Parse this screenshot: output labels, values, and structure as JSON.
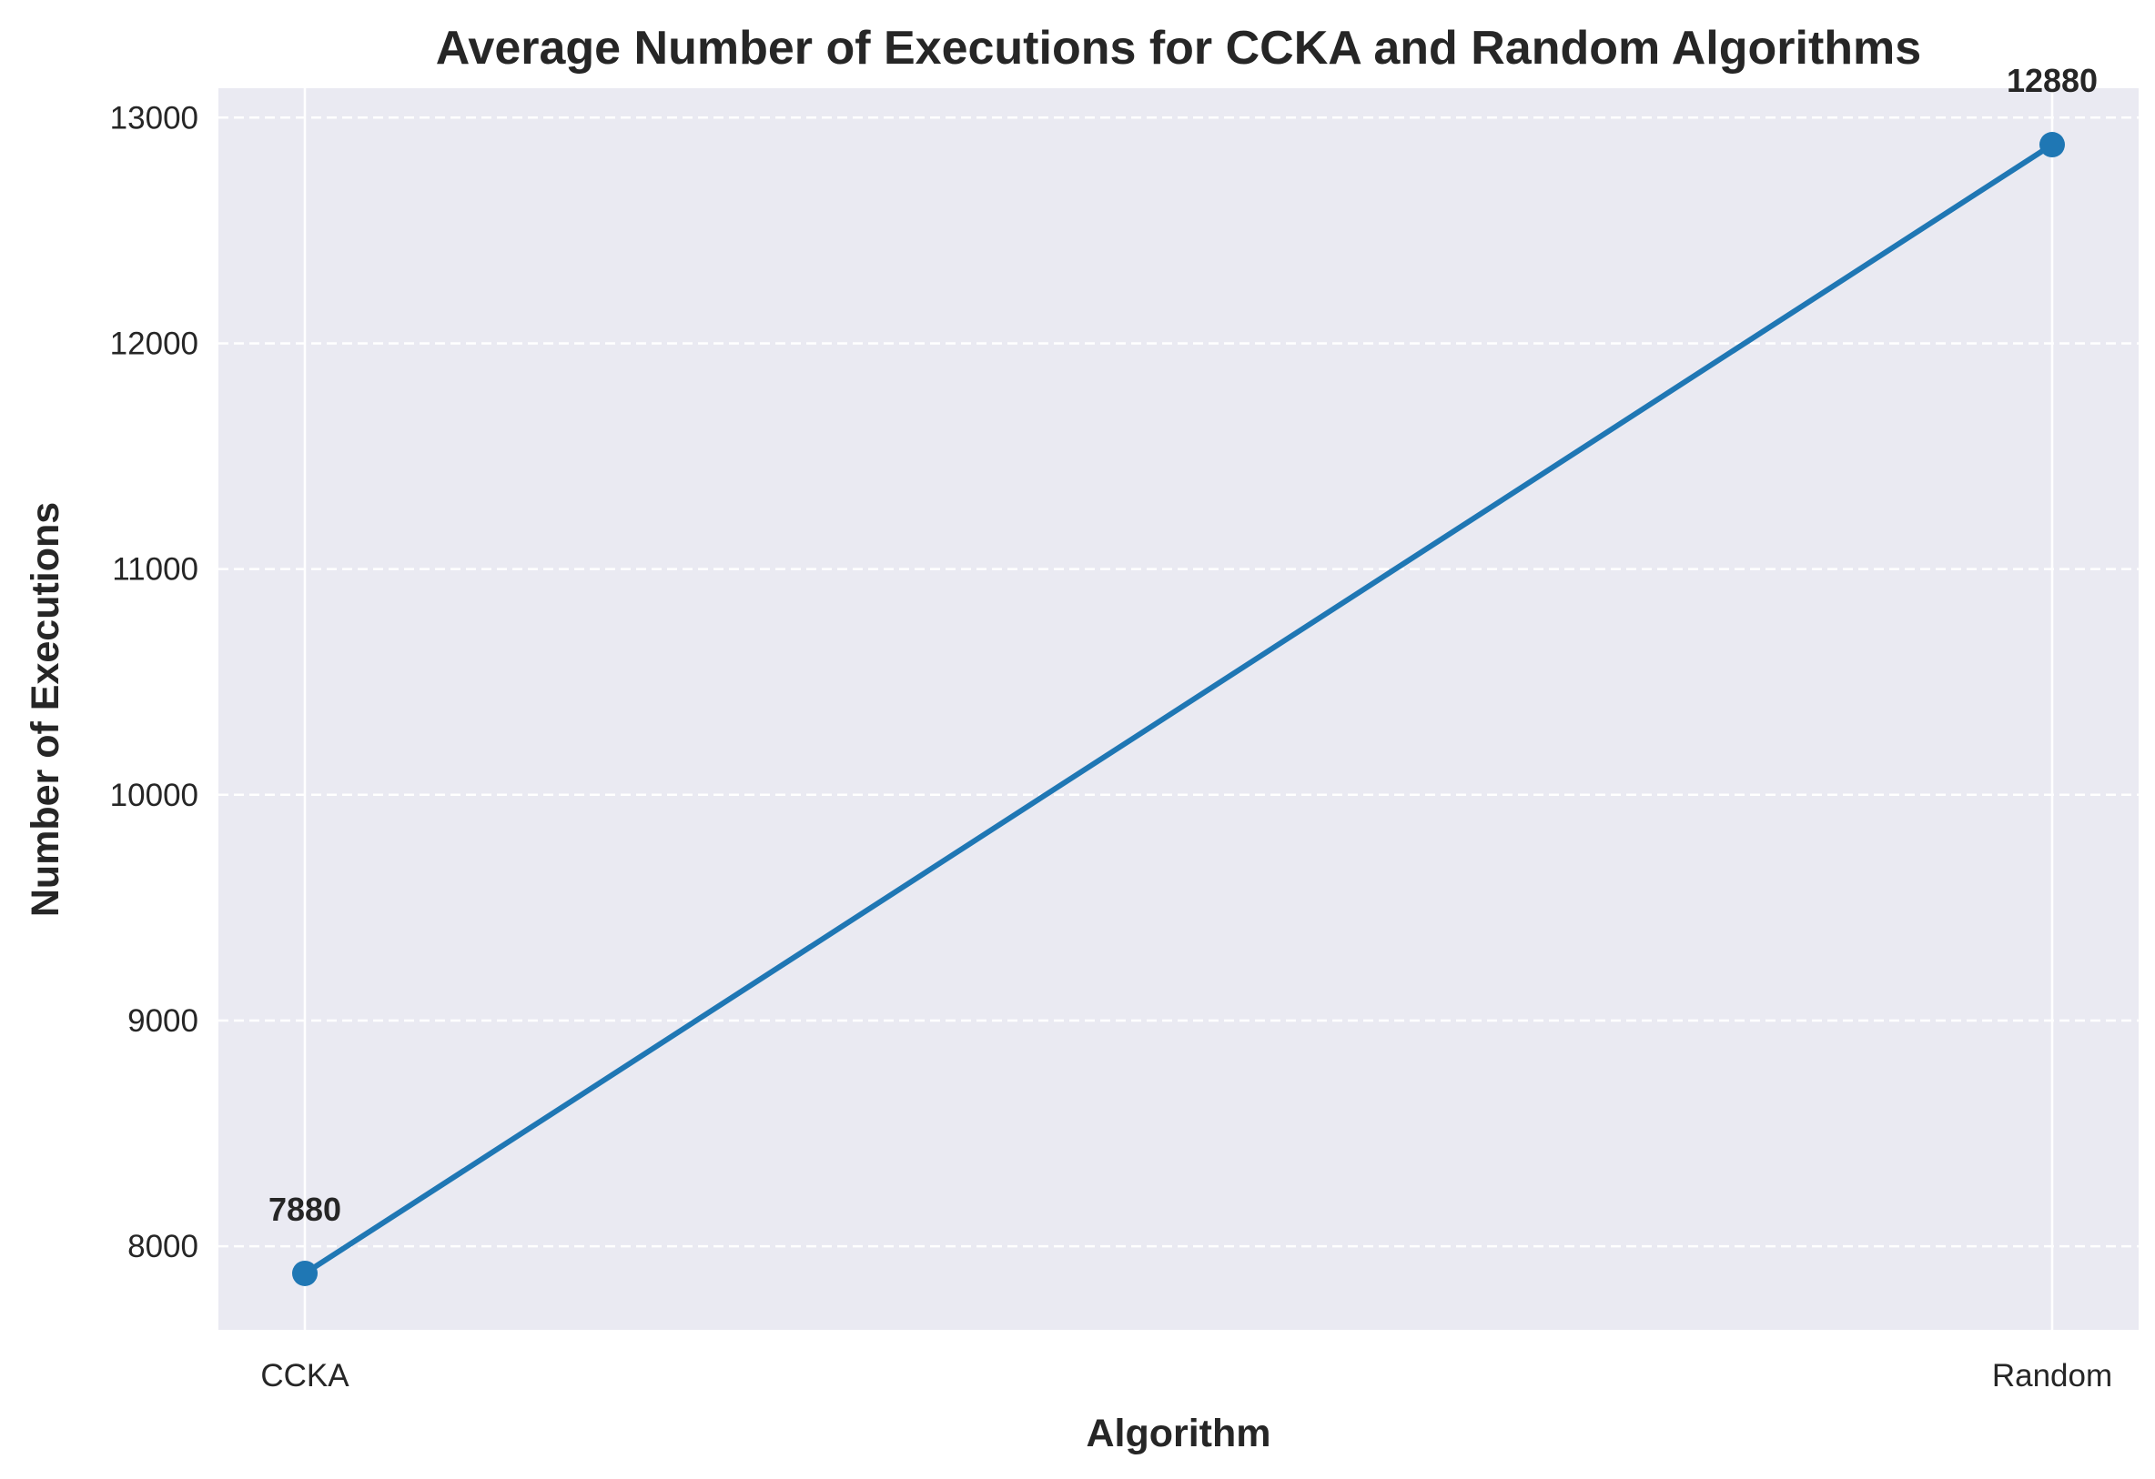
{
  "chart_data": {
    "type": "line",
    "title": "Average Number of Executions for CCKA and Random Algorithms",
    "xlabel": "Algorithm",
    "ylabel": "Number of Executions",
    "categories": [
      "CCKA",
      "Random"
    ],
    "series": [
      {
        "values": [
          7880,
          12880
        ],
        "data_labels": [
          "7880",
          "12880"
        ]
      }
    ],
    "ylim": [
      7630,
      13130
    ],
    "yticks": [
      8000,
      9000,
      10000,
      11000,
      12000,
      13000
    ],
    "ytick_labels": [
      "8000",
      "9000",
      "10000",
      "11000",
      "12000",
      "13000"
    ],
    "grid": {
      "y": "dashed",
      "x": "solid"
    },
    "legend": "none",
    "colors": {
      "line": "#1f77b4",
      "plot_background": "#eaeaf2",
      "grid": "#ffffff",
      "text": "#262626"
    }
  }
}
